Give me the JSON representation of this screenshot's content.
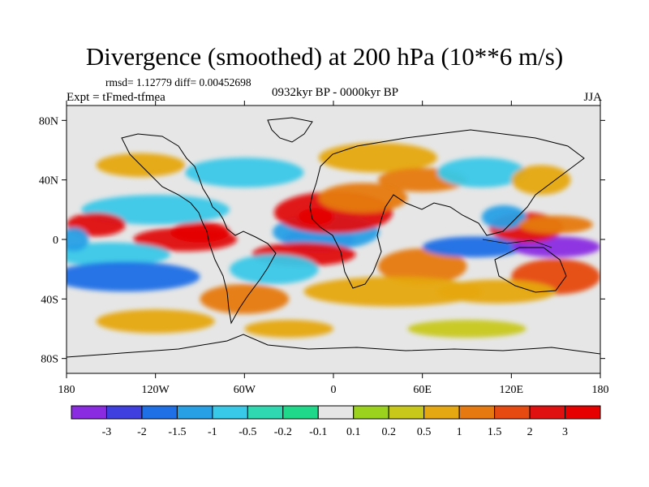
{
  "header": {
    "title": "Divergence (smoothed) at 200 hPa (10**6 m/s)",
    "stats": "rmsd= 1.12779 diff= 0.00452698",
    "experiment": "Expt = tFmed-tfmea",
    "period": "0932kyr BP - 0000kyr BP",
    "season": "JJA"
  },
  "chart_data": {
    "type": "heatmap",
    "title": "Divergence (smoothed) at 200 hPa (10**6 m/s)",
    "projection": "cylindrical-equidistant",
    "x_range": [
      -180,
      180
    ],
    "y_range": [
      -90,
      90
    ],
    "x_ticks": [
      {
        "value": -180,
        "label": "180"
      },
      {
        "value": -120,
        "label": "120W"
      },
      {
        "value": -60,
        "label": "60W"
      },
      {
        "value": 0,
        "label": "0"
      },
      {
        "value": 60,
        "label": "60E"
      },
      {
        "value": 120,
        "label": "120E"
      },
      {
        "value": 180,
        "label": "180"
      }
    ],
    "y_ticks": [
      {
        "value": 80,
        "label": "80N"
      },
      {
        "value": 40,
        "label": "40N"
      },
      {
        "value": 0,
        "label": "0"
      },
      {
        "value": -40,
        "label": "40S"
      },
      {
        "value": -80,
        "label": "80S"
      }
    ],
    "colorbar": {
      "levels": [
        -3,
        -2,
        -1.5,
        -1,
        -0.5,
        -0.2,
        -0.1,
        0.1,
        0.2,
        0.5,
        1,
        1.5,
        2,
        3
      ],
      "labels": [
        "-3",
        "-2",
        "-1.5",
        "-1",
        "-0.5",
        "-0.2",
        "-0.1",
        "0.1",
        "0.2",
        "0.5",
        "1",
        "1.5",
        "2",
        "3"
      ],
      "colors": [
        "#8a2be2",
        "#3f3fe0",
        "#1f6fe6",
        "#27a0e6",
        "#38c8e8",
        "#2fd8b0",
        "#1fd88a",
        "#e6e6e6",
        "#9ad21e",
        "#c8c81a",
        "#e6a812",
        "#e67a10",
        "#e64a10",
        "#e01010",
        "#e60000"
      ]
    },
    "anomalies": [
      {
        "lon": -10,
        "lat": 0,
        "rx": 24,
        "ry": 8,
        "value": -3.5
      },
      {
        "lon": -5,
        "lat": 5,
        "rx": 36,
        "ry": 12,
        "value": -1.2
      },
      {
        "lon": 0,
        "lat": 18,
        "rx": 40,
        "ry": 14,
        "value": 2.2
      },
      {
        "lon": -12,
        "lat": 15,
        "rx": 12,
        "ry": 6,
        "value": 3.2
      },
      {
        "lon": 20,
        "lat": 28,
        "rx": 30,
        "ry": 10,
        "value": 1.2
      },
      {
        "lon": -20,
        "lat": -10,
        "rx": 35,
        "ry": 8,
        "value": 2.0
      },
      {
        "lon": -40,
        "lat": -20,
        "rx": 30,
        "ry": 10,
        "value": -1.0
      },
      {
        "lon": 60,
        "lat": -18,
        "rx": 30,
        "ry": 12,
        "value": 1.4
      },
      {
        "lon": 40,
        "lat": -35,
        "rx": 60,
        "ry": 10,
        "value": 0.7
      },
      {
        "lon": 95,
        "lat": -5,
        "rx": 35,
        "ry": 7,
        "value": -1.6
      },
      {
        "lon": 150,
        "lat": -5,
        "rx": 30,
        "ry": 7,
        "value": -3.2
      },
      {
        "lon": 130,
        "lat": 8,
        "rx": 25,
        "ry": 10,
        "value": 2.0
      },
      {
        "lon": 115,
        "lat": 15,
        "rx": 15,
        "ry": 8,
        "value": -1.2
      },
      {
        "lon": 150,
        "lat": 10,
        "rx": 25,
        "ry": 6,
        "value": 1.0
      },
      {
        "lon": 150,
        "lat": -25,
        "rx": 30,
        "ry": 12,
        "value": 1.5
      },
      {
        "lon": 110,
        "lat": -35,
        "rx": 40,
        "ry": 8,
        "value": 0.8
      },
      {
        "lon": -100,
        "lat": 0,
        "rx": 35,
        "ry": 8,
        "value": 2.0
      },
      {
        "lon": -90,
        "lat": 5,
        "rx": 20,
        "ry": 7,
        "value": 3.0
      },
      {
        "lon": -150,
        "lat": -10,
        "rx": 40,
        "ry": 8,
        "value": -1.0
      },
      {
        "lon": -140,
        "lat": -25,
        "rx": 50,
        "ry": 10,
        "value": -1.8
      },
      {
        "lon": -120,
        "lat": 20,
        "rx": 50,
        "ry": 10,
        "value": -0.8
      },
      {
        "lon": -160,
        "lat": 10,
        "rx": 20,
        "ry": 8,
        "value": 2.0
      },
      {
        "lon": -175,
        "lat": 0,
        "rx": 10,
        "ry": 8,
        "value": -1.5
      },
      {
        "lon": -60,
        "lat": -40,
        "rx": 30,
        "ry": 10,
        "value": 1.0
      },
      {
        "lon": -120,
        "lat": -55,
        "rx": 40,
        "ry": 8,
        "value": 0.5
      },
      {
        "lon": -130,
        "lat": 50,
        "rx": 30,
        "ry": 8,
        "value": 0.6
      },
      {
        "lon": -60,
        "lat": 45,
        "rx": 40,
        "ry": 10,
        "value": -0.6
      },
      {
        "lon": 30,
        "lat": 55,
        "rx": 40,
        "ry": 10,
        "value": 0.5
      },
      {
        "lon": 60,
        "lat": 40,
        "rx": 30,
        "ry": 8,
        "value": 1.0
      },
      {
        "lon": 100,
        "lat": 45,
        "rx": 30,
        "ry": 10,
        "value": -0.6
      },
      {
        "lon": 140,
        "lat": 40,
        "rx": 20,
        "ry": 10,
        "value": 0.8
      },
      {
        "lon": 90,
        "lat": -60,
        "rx": 40,
        "ry": 6,
        "value": 0.4
      },
      {
        "lon": -30,
        "lat": -60,
        "rx": 30,
        "ry": 6,
        "value": 0.5
      }
    ]
  }
}
